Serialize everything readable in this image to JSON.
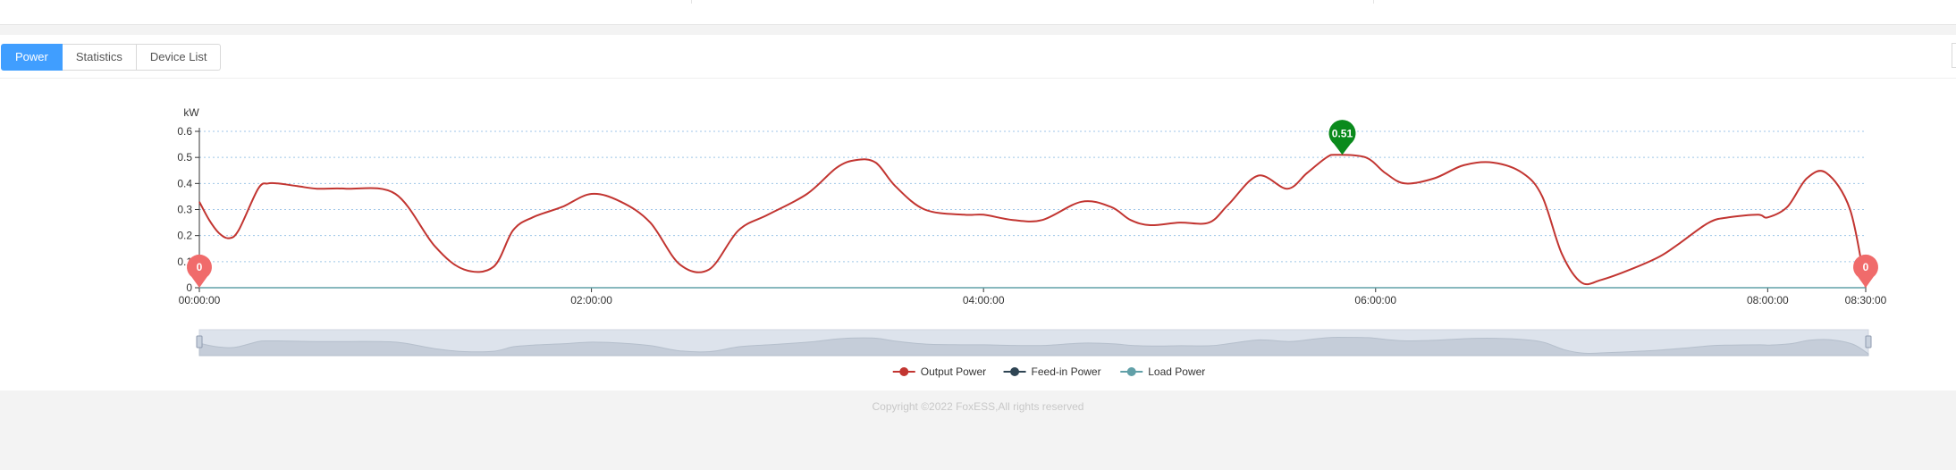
{
  "tabs": [
    {
      "label": "Power",
      "active": true
    },
    {
      "label": "Statistics",
      "active": false
    },
    {
      "label": "Device List",
      "active": false
    }
  ],
  "legend": [
    {
      "label": "Output Power",
      "color": "#c23531"
    },
    {
      "label": "Feed-in Power",
      "color": "#2f4554"
    },
    {
      "label": "Load Power",
      "color": "#61a0a8"
    }
  ],
  "chart_data": {
    "type": "line",
    "ylabel": "kW",
    "ylim": [
      0,
      0.6
    ],
    "yticks": [
      "0",
      "0.1",
      "0.2",
      "0.3",
      "0.4",
      "0.5",
      "0.6"
    ],
    "x_range_hours": [
      0,
      8.5
    ],
    "xticks": [
      {
        "hour": 0,
        "label": "00:00:00"
      },
      {
        "hour": 2,
        "label": "02:00:00"
      },
      {
        "hour": 4,
        "label": "04:00:00"
      },
      {
        "hour": 6,
        "label": "06:00:00"
      },
      {
        "hour": 8,
        "label": "08:00:00"
      },
      {
        "hour": 8.5,
        "label": "08:30:00"
      }
    ],
    "grid": true,
    "legend_position": "bottom",
    "series": [
      {
        "name": "Output Power",
        "color": "#c23531",
        "x": [
          0,
          0.05,
          0.1,
          0.15,
          0.2,
          0.3,
          0.35,
          0.4,
          0.5,
          0.6,
          0.75,
          1,
          1.2,
          1.35,
          1.5,
          1.6,
          1.7,
          1.85,
          2,
          2.15,
          2.3,
          2.45,
          2.6,
          2.75,
          2.9,
          3.1,
          3.25,
          3.35,
          3.45,
          3.55,
          3.7,
          3.9,
          4,
          4.15,
          4.3,
          4.5,
          4.65,
          4.75,
          4.85,
          5,
          5.15,
          5.25,
          5.4,
          5.55,
          5.65,
          5.75,
          5.8,
          5.95,
          6.05,
          6.15,
          6.3,
          6.45,
          6.6,
          6.75,
          6.85,
          6.95,
          7.05,
          7.15,
          7.3,
          7.45,
          7.55,
          7.7,
          7.8,
          7.95,
          8,
          8.1,
          8.2,
          8.3,
          8.42,
          8.5
        ],
        "y": [
          0.33,
          0.26,
          0.21,
          0.19,
          0.22,
          0.38,
          0.4,
          0.4,
          0.39,
          0.38,
          0.38,
          0.36,
          0.16,
          0.07,
          0.08,
          0.22,
          0.27,
          0.31,
          0.36,
          0.33,
          0.25,
          0.09,
          0.07,
          0.22,
          0.28,
          0.36,
          0.46,
          0.49,
          0.48,
          0.39,
          0.3,
          0.28,
          0.28,
          0.26,
          0.26,
          0.33,
          0.31,
          0.26,
          0.24,
          0.25,
          0.25,
          0.32,
          0.43,
          0.38,
          0.44,
          0.5,
          0.51,
          0.5,
          0.44,
          0.4,
          0.42,
          0.47,
          0.48,
          0.44,
          0.35,
          0.13,
          0.02,
          0.03,
          0.07,
          0.12,
          0.17,
          0.25,
          0.27,
          0.28,
          0.27,
          0.31,
          0.42,
          0.44,
          0.3,
          0.0
        ]
      },
      {
        "name": "Feed-in Power",
        "color": "#2f4554",
        "x": [],
        "y": []
      },
      {
        "name": "Load Power",
        "color": "#61a0a8",
        "x": [
          0,
          8.5
        ],
        "y": [
          0,
          0
        ]
      }
    ],
    "markers": [
      {
        "label": "0.51",
        "hour": 5.83,
        "value": 0.51,
        "color": "#0a8a1c"
      },
      {
        "label": "0",
        "hour": 0,
        "value": 0,
        "color": "#f06b6b"
      },
      {
        "label": "0",
        "hour": 8.5,
        "value": 0,
        "color": "#f06b6b"
      }
    ]
  },
  "footer": {
    "copyright": "Copyright ©2022 FoxESS,All rights reserved"
  }
}
